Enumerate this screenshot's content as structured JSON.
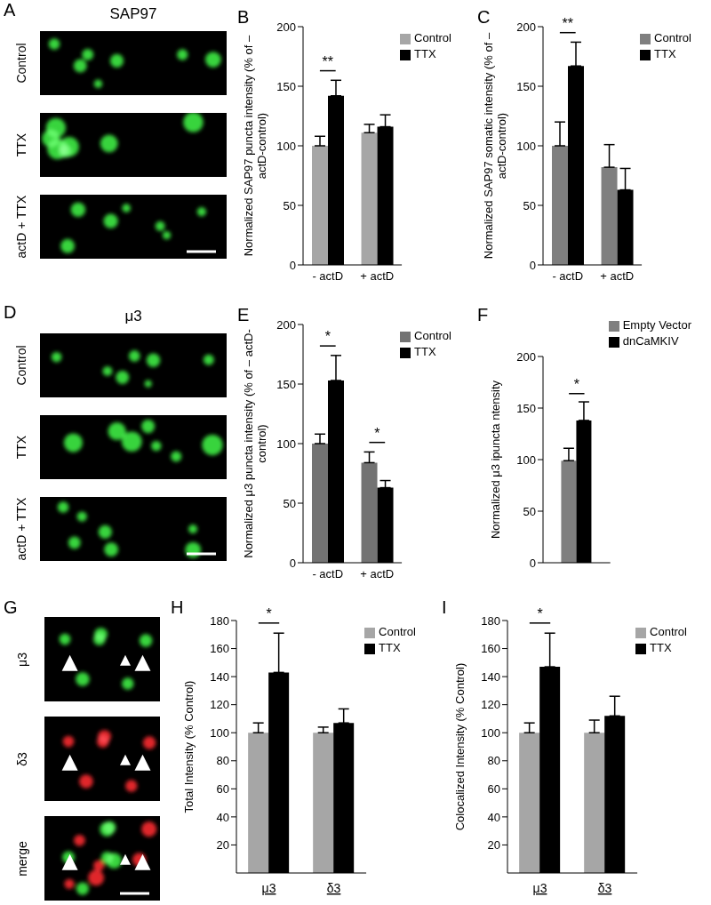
{
  "image_panels": [
    {
      "panel": "A",
      "title": "SAP97",
      "rows": [
        "Control",
        "TTX",
        "actD + TTX"
      ]
    },
    {
      "panel": "D",
      "title": "μ3",
      "rows": [
        "Control",
        "TTX",
        "actD + TTX"
      ]
    },
    {
      "panel": "G",
      "rows": [
        "μ3",
        "δ3",
        "merge"
      ]
    }
  ],
  "chart_data": [
    {
      "panel": "B",
      "type": "bar",
      "ylabel": "Normalized SAP97 puncta intensity (% of – actD-control)",
      "categories": [
        "- actD",
        "+ actD"
      ],
      "series": [
        {
          "name": "Control",
          "color": "#a6a6a6",
          "values": [
            100,
            111
          ],
          "errors": [
            8,
            7
          ]
        },
        {
          "name": "TTX",
          "color": "#000000",
          "values": [
            142,
            116
          ],
          "errors": [
            13,
            10
          ]
        }
      ],
      "ylim": [
        0,
        200
      ],
      "yticks": [
        0,
        50,
        100,
        150,
        200
      ],
      "legend": "upper right",
      "annotations": [
        {
          "text": "**",
          "category": "- actD"
        }
      ]
    },
    {
      "panel": "C",
      "type": "bar",
      "ylabel": "Normalized SAP97 somatic intensity (% of – actD-control)",
      "categories": [
        "- actD",
        "+ actD"
      ],
      "series": [
        {
          "name": "Control",
          "color": "#7f7f7f",
          "values": [
            100,
            82
          ],
          "errors": [
            20,
            19
          ]
        },
        {
          "name": "TTX",
          "color": "#000000",
          "values": [
            167,
            63
          ],
          "errors": [
            20,
            18
          ]
        }
      ],
      "ylim": [
        0,
        200
      ],
      "yticks": [
        0,
        50,
        100,
        150,
        200
      ],
      "legend": "upper right",
      "annotations": [
        {
          "text": "**",
          "category": "- actD"
        }
      ]
    },
    {
      "panel": "E",
      "type": "bar",
      "ylabel": "Normalized μ3 puncta intensity (% of – actD-control)",
      "categories": [
        "- actD",
        "+ actD"
      ],
      "series": [
        {
          "name": "Control",
          "color": "#737373",
          "values": [
            100,
            84
          ],
          "errors": [
            8,
            9
          ]
        },
        {
          "name": "TTX",
          "color": "#000000",
          "values": [
            153,
            63
          ],
          "errors": [
            21,
            6
          ]
        }
      ],
      "ylim": [
        0,
        200
      ],
      "yticks": [
        0,
        50,
        100,
        150,
        200
      ],
      "legend": "upper right",
      "annotations": [
        {
          "text": "*",
          "category": "- actD"
        },
        {
          "text": "*",
          "category": "+ actD"
        }
      ]
    },
    {
      "panel": "F",
      "type": "bar",
      "ylabel": "Normalized μ3 ipuncta ntensity",
      "categories": [
        null
      ],
      "series": [
        {
          "name": "Empty Vector",
          "color": "#7f7f7f",
          "values": [
            99
          ],
          "errors": [
            12
          ]
        },
        {
          "name": "dnCaMKIV",
          "color": "#000000",
          "values": [
            138
          ],
          "errors": [
            18
          ]
        }
      ],
      "ylim": [
        0,
        200
      ],
      "yticks": [
        0,
        50,
        100,
        150,
        200
      ],
      "legend": "upper right",
      "annotations": [
        {
          "text": "*",
          "category": null
        }
      ]
    },
    {
      "panel": "H",
      "type": "bar",
      "ylabel": "Total Intensity (% Control)",
      "categories": [
        "μ3",
        "δ3"
      ],
      "series": [
        {
          "name": "Control",
          "color": "#a6a6a6",
          "values": [
            100,
            100
          ],
          "errors": [
            7,
            4
          ]
        },
        {
          "name": "TTX",
          "color": "#000000",
          "values": [
            143,
            107
          ],
          "errors": [
            28,
            10
          ]
        }
      ],
      "ylim": [
        0,
        180
      ],
      "yticks": [
        20,
        40,
        60,
        80,
        100,
        120,
        140,
        160,
        180
      ],
      "legend": "upper right",
      "annotations": [
        {
          "text": "*",
          "category": "μ3"
        }
      ]
    },
    {
      "panel": "I",
      "type": "bar",
      "ylabel": "Colocalized Intensity (% Control)",
      "categories": [
        "μ3",
        "δ3"
      ],
      "series": [
        {
          "name": "Control",
          "color": "#a6a6a6",
          "values": [
            100,
            100
          ],
          "errors": [
            7,
            9
          ]
        },
        {
          "name": "TTX",
          "color": "#000000",
          "values": [
            147,
            112
          ],
          "errors": [
            24,
            14
          ]
        }
      ],
      "ylim": [
        0,
        180
      ],
      "yticks": [
        20,
        40,
        60,
        80,
        100,
        120,
        140,
        160,
        180
      ],
      "legend": "upper right",
      "annotations": [
        {
          "text": "*",
          "category": "μ3"
        }
      ]
    }
  ]
}
